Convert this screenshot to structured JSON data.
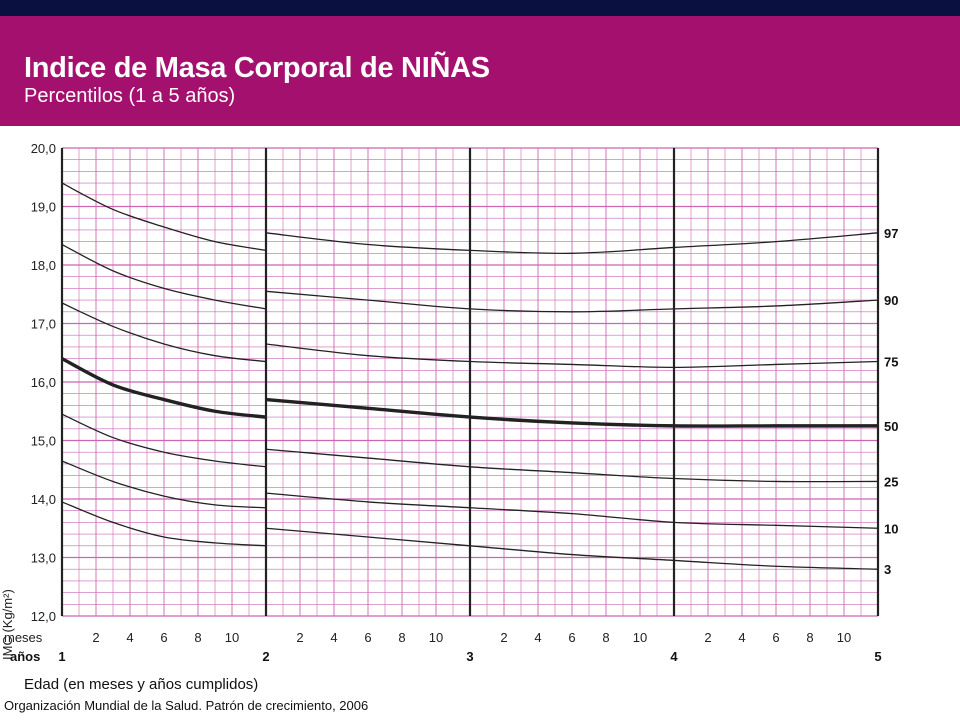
{
  "header": {
    "title": "Indice de Masa Corporal de NIÑAS",
    "subtitle": "Percentilos (1 a 5 años)"
  },
  "colors": {
    "header_bg": "#a3106e",
    "top_bar": "#0a1140",
    "grid_minor": "#cc66b0",
    "grid_year": "#222222",
    "curve": "#222222"
  },
  "footer": {
    "xlabel": "Edad (en meses y años cumplidos)",
    "source": "Organización Mundial de la Salud. Patrón de crecimiento, 2006"
  },
  "chart_data": {
    "type": "line",
    "title": "Indice de Masa Corporal de NIÑAS",
    "subtitle": "Percentilos (1 a 5 años)",
    "ylabel": "IMC (Kg/m²)",
    "xlabel": "Edad (en meses y años cumplidos)",
    "xlim": [
      1,
      5
    ],
    "ylim": [
      12,
      20
    ],
    "y_ticks": [
      "12,0",
      "13,0",
      "14,0",
      "15,0",
      "16,0",
      "17,0",
      "18,0",
      "19,0",
      "20,0"
    ],
    "x_row_labels": {
      "months": "meses",
      "years": "años"
    },
    "month_ticks": [
      "2",
      "4",
      "6",
      "8",
      "10"
    ],
    "year_ticks": [
      "1",
      "2",
      "3",
      "4",
      "5"
    ],
    "grid": true,
    "series": [
      {
        "name": "97",
        "segments": [
          {
            "x": [
              1.0,
              1.25,
              1.5,
              1.75,
              2.0
            ],
            "y": [
              19.4,
              18.95,
              18.65,
              18.4,
              18.25
            ]
          },
          {
            "x": [
              2.0,
              2.5,
              3.0,
              3.5,
              4.0,
              4.5,
              5.0
            ],
            "y": [
              18.55,
              18.35,
              18.25,
              18.2,
              18.3,
              18.4,
              18.55
            ]
          }
        ]
      },
      {
        "name": "90",
        "segments": [
          {
            "x": [
              1.0,
              1.25,
              1.5,
              1.75,
              2.0
            ],
            "y": [
              18.35,
              17.9,
              17.6,
              17.4,
              17.25
            ]
          },
          {
            "x": [
              2.0,
              2.5,
              3.0,
              3.5,
              4.0,
              4.5,
              5.0
            ],
            "y": [
              17.55,
              17.4,
              17.25,
              17.2,
              17.25,
              17.3,
              17.4
            ]
          }
        ]
      },
      {
        "name": "75",
        "segments": [
          {
            "x": [
              1.0,
              1.25,
              1.5,
              1.75,
              2.0
            ],
            "y": [
              17.35,
              16.95,
              16.65,
              16.45,
              16.35
            ]
          },
          {
            "x": [
              2.0,
              2.5,
              3.0,
              3.5,
              4.0,
              4.5,
              5.0
            ],
            "y": [
              16.65,
              16.45,
              16.35,
              16.3,
              16.25,
              16.3,
              16.35
            ]
          }
        ]
      },
      {
        "name": "50",
        "segments": [
          {
            "x": [
              1.0,
              1.25,
              1.5,
              1.75,
              2.0
            ],
            "y": [
              16.4,
              15.95,
              15.7,
              15.5,
              15.4
            ]
          },
          {
            "x": [
              2.0,
              2.5,
              3.0,
              3.5,
              4.0,
              4.5,
              5.0
            ],
            "y": [
              15.7,
              15.55,
              15.4,
              15.3,
              15.25,
              15.25,
              15.25
            ]
          }
        ]
      },
      {
        "name": "25",
        "segments": [
          {
            "x": [
              1.0,
              1.25,
              1.5,
              1.75,
              2.0
            ],
            "y": [
              15.45,
              15.05,
              14.8,
              14.65,
              14.55
            ]
          },
          {
            "x": [
              2.0,
              2.5,
              3.0,
              3.5,
              4.0,
              4.5,
              5.0
            ],
            "y": [
              14.85,
              14.7,
              14.55,
              14.45,
              14.35,
              14.3,
              14.3
            ]
          }
        ]
      },
      {
        "name": "10",
        "segments": [
          {
            "x": [
              1.0,
              1.25,
              1.5,
              1.75,
              2.0
            ],
            "y": [
              14.65,
              14.3,
              14.05,
              13.9,
              13.85
            ]
          },
          {
            "x": [
              2.0,
              2.5,
              3.0,
              3.5,
              4.0,
              4.5,
              5.0
            ],
            "y": [
              14.1,
              13.95,
              13.85,
              13.75,
              13.6,
              13.55,
              13.5
            ]
          }
        ]
      },
      {
        "name": "3",
        "segments": [
          {
            "x": [
              1.0,
              1.25,
              1.5,
              1.75,
              2.0
            ],
            "y": [
              13.95,
              13.6,
              13.35,
              13.25,
              13.2
            ]
          },
          {
            "x": [
              2.0,
              2.5,
              3.0,
              3.5,
              4.0,
              4.5,
              5.0
            ],
            "y": [
              13.5,
              13.35,
              13.2,
              13.05,
              12.95,
              12.85,
              12.8
            ]
          }
        ]
      }
    ]
  }
}
